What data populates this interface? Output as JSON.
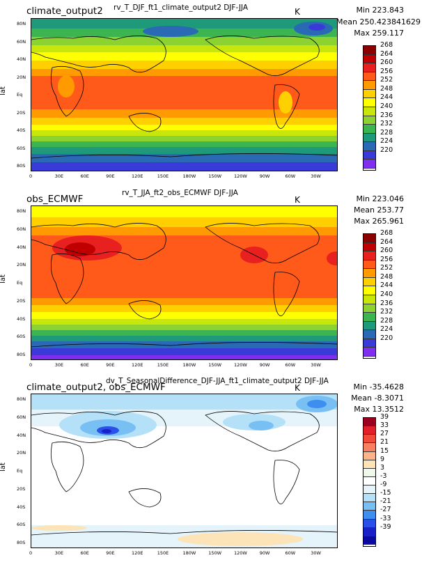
{
  "panels": [
    {
      "title": "climate_output2",
      "subtitle": "rv_T_DJF_ft1_climate_output2  DJF-JJA",
      "units": "K",
      "stats": {
        "min": "Min 223.843",
        "mean": "Mean 250.423841629",
        "max": "Max 259.117"
      },
      "ylabel": "lat",
      "colorbar": {
        "labels": [
          "268",
          "264",
          "260",
          "256",
          "252",
          "248",
          "244",
          "240",
          "236",
          "232",
          "228",
          "224",
          "220"
        ],
        "colors": [
          "#8b0000",
          "#c00000",
          "#e82020",
          "#ff5a1a",
          "#ff9a00",
          "#ffd000",
          "#ffff00",
          "#c8e60a",
          "#8cd230",
          "#3cb450",
          "#1e9a7a",
          "#2a6ab4",
          "#3a3ad8",
          "#7f2ef0"
        ]
      }
    },
    {
      "title": "obs_ECMWF",
      "subtitle": "rv_T_JJA_ft2_obs_ECMWF  DJF-JJA",
      "units": "K",
      "stats": {
        "min": "Min 223.046",
        "mean": "Mean 253.77",
        "max": "Max 265.961"
      },
      "ylabel": "lat",
      "colorbar": {
        "labels": [
          "268",
          "264",
          "260",
          "256",
          "252",
          "248",
          "244",
          "240",
          "236",
          "232",
          "228",
          "224",
          "220"
        ],
        "colors": [
          "#8b0000",
          "#c00000",
          "#e82020",
          "#ff5a1a",
          "#ff9a00",
          "#ffd000",
          "#ffff00",
          "#c8e60a",
          "#8cd230",
          "#3cb450",
          "#1e9a7a",
          "#2a6ab4",
          "#3a3ad8",
          "#7f2ef0"
        ]
      }
    },
    {
      "title": "climate_output2, obs_ECMWF",
      "subtitle": "dv_T_SeasonalDifference_DJF-JJA_ft1_climate_output2  DJF-JJA",
      "units": "K",
      "stats": {
        "min": "Min -35.4628",
        "mean": "Mean -8.3071",
        "max": "Max 13.3512"
      },
      "ylabel": "lat",
      "colorbar": {
        "labels": [
          "39",
          "33",
          "27",
          "21",
          "15",
          "9",
          "3",
          "-3",
          "-9",
          "-15",
          "-21",
          "-27",
          "-33",
          "-39"
        ],
        "colors": [
          "#9b0020",
          "#e0202a",
          "#f04a3a",
          "#f88060",
          "#fbb48a",
          "#fde4b8",
          "#f0f8ea",
          "#ffffff",
          "#e4f4fa",
          "#b4e0f8",
          "#78c0f4",
          "#3e8ef0",
          "#2a50e8",
          "#1a20c8",
          "#0a0aa0"
        ]
      }
    }
  ],
  "lat_ticks": [
    "80N",
    "60N",
    "40N",
    "20N",
    "Eq",
    "20S",
    "40S",
    "60S",
    "80S"
  ],
  "lon_ticks": [
    "0",
    "30E",
    "60E",
    "90E",
    "120E",
    "150E",
    "180W",
    "150W",
    "120W",
    "90W",
    "60W",
    "30W"
  ]
}
